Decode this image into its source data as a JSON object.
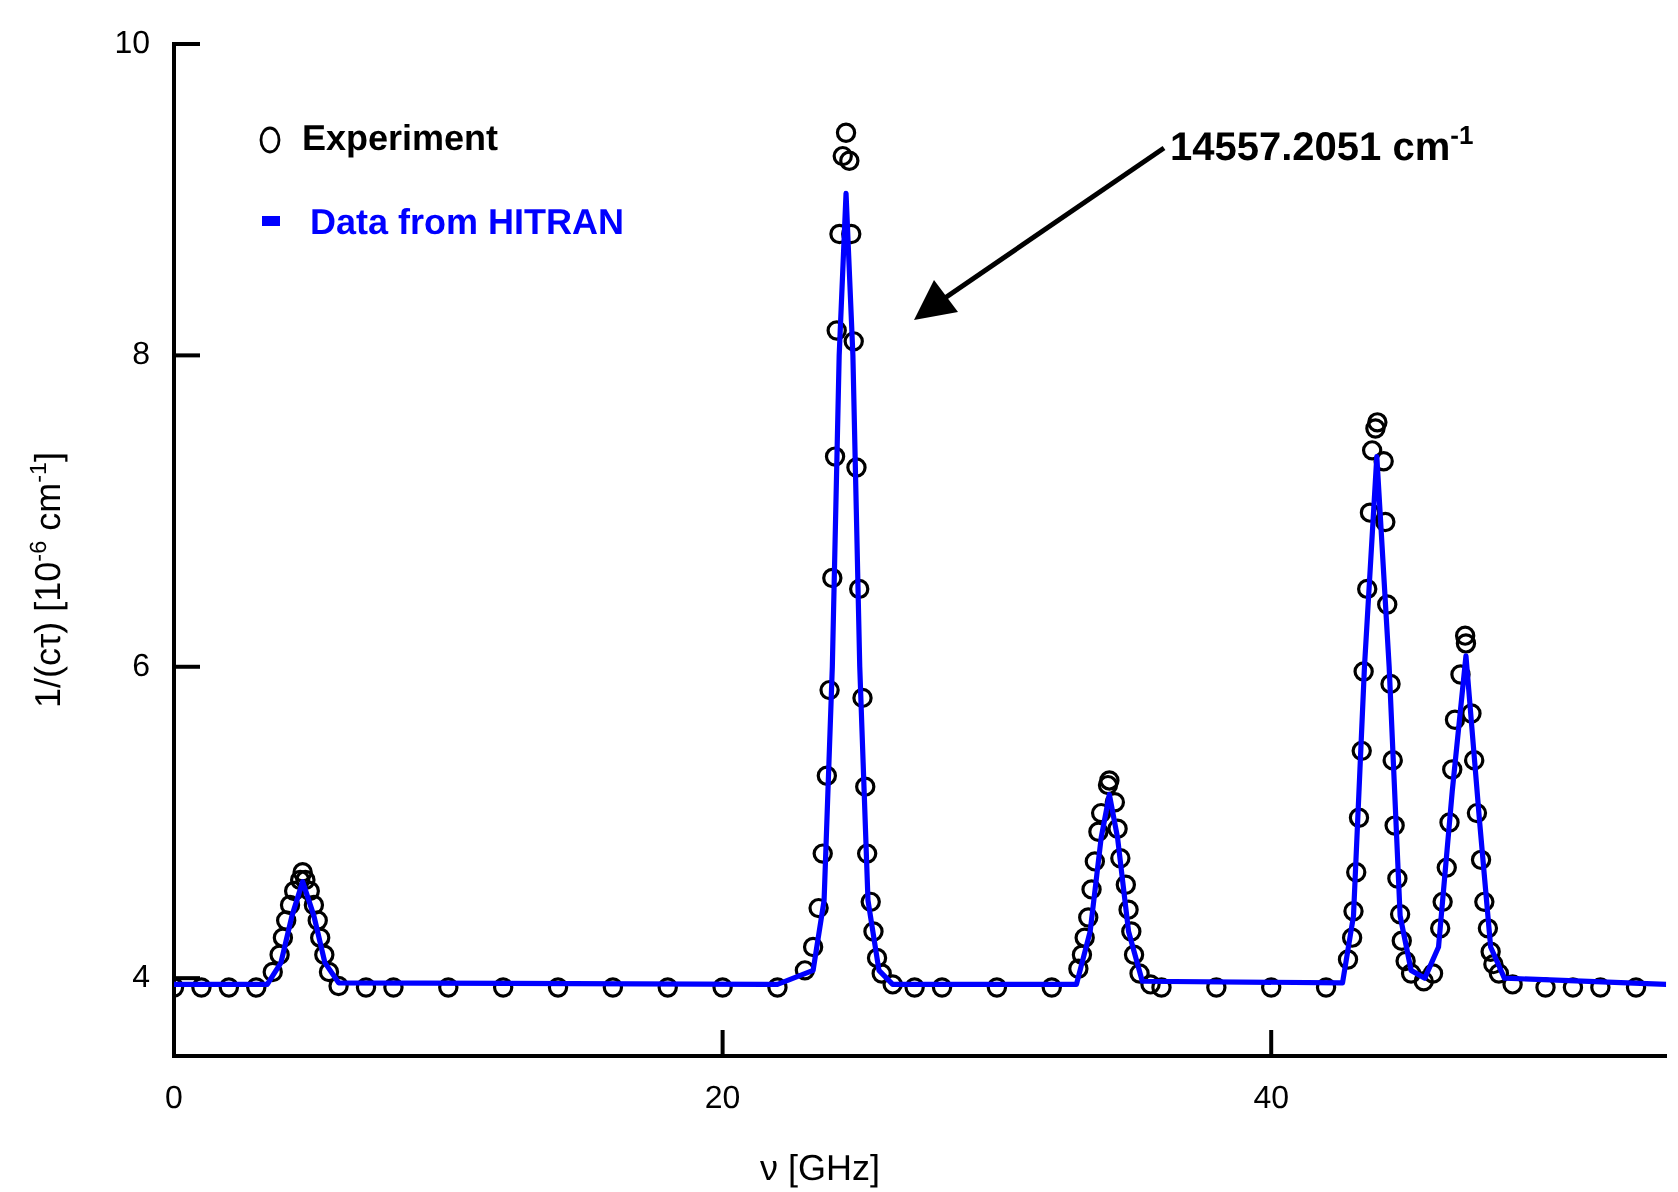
{
  "chart_data": {
    "type": "scatter",
    "xlabel": "ν [GHz]",
    "ylabel": "1/(cτ) [10$^{-6}$ cm$^{-1}$]",
    "annotations": [
      "14557.2051 cm$^{-1}$"
    ],
    "xlim": [
      0,
      54.4
    ],
    "xticks": [
      0,
      20,
      40
    ],
    "ylim": [
      3.5,
      10
    ],
    "yticks": [
      4,
      6,
      8,
      10
    ],
    "grid": false,
    "legend": "top left",
    "series": [
      {
        "name": "Experiment",
        "type": "scatter",
        "marker": "circle",
        "color": "#000000",
        "x": [
          0,
          1,
          2,
          3,
          3.6,
          3.85,
          3.97,
          4.09,
          4.23,
          4.38,
          4.6,
          4.69,
          4.79,
          4.95,
          5.1,
          5.24,
          5.33,
          5.48,
          5.65,
          6,
          7,
          8,
          10,
          12,
          14,
          16,
          18,
          20,
          22,
          23,
          23.3,
          23.5,
          23.65,
          23.8,
          23.9,
          24.0,
          24.1,
          24.16,
          24.26,
          24.38,
          24.5,
          24.62,
          24.69,
          24.78,
          24.88,
          24.98,
          25.1,
          25.2,
          25.27,
          25.4,
          25.5,
          25.63,
          25.8,
          26.2,
          27,
          28,
          30,
          32,
          32.97,
          33.1,
          33.2,
          33.33,
          33.45,
          33.57,
          33.7,
          33.8,
          34.05,
          34.1,
          34.3,
          34.4,
          34.5,
          34.7,
          34.8,
          34.9,
          35.0,
          35.2,
          35.6,
          36,
          38,
          40,
          42,
          42.8,
          42.95,
          43.0,
          43.1,
          43.2,
          43.3,
          43.37,
          43.5,
          43.6,
          43.68,
          43.8,
          43.87,
          44.1,
          44.16,
          44.23,
          44.35,
          44.43,
          44.5,
          44.6,
          44.7,
          44.76,
          44.9,
          45.1,
          45.56,
          45.9,
          46.16,
          46.25,
          46.4,
          46.5,
          46.6,
          46.7,
          46.9,
          47.07,
          47.1,
          47.3,
          47.4,
          47.5,
          47.65,
          47.77,
          47.9,
          48.0,
          48.1,
          48.3,
          48.8,
          50,
          51,
          52,
          53.3
        ],
        "values": [
          3.94,
          3.94,
          3.94,
          3.94,
          4.04,
          4.15,
          4.26,
          4.37,
          4.47,
          4.56,
          4.63,
          4.68,
          4.63,
          4.56,
          4.47,
          4.37,
          4.26,
          4.15,
          4.04,
          3.95,
          3.94,
          3.94,
          3.94,
          3.94,
          3.94,
          3.94,
          3.94,
          3.94,
          3.94,
          4.05,
          4.2,
          4.45,
          4.8,
          5.3,
          5.85,
          6.57,
          7.35,
          8.16,
          8.78,
          9.28,
          9.43,
          9.25,
          8.78,
          8.09,
          7.28,
          6.5,
          5.8,
          5.23,
          4.8,
          4.49,
          4.3,
          4.13,
          4.03,
          3.96,
          3.94,
          3.94,
          3.94,
          3.94,
          4.06,
          4.15,
          4.26,
          4.39,
          4.57,
          4.75,
          4.94,
          5.06,
          5.24,
          5.27,
          5.13,
          4.96,
          4.77,
          4.6,
          4.44,
          4.3,
          4.15,
          4.03,
          3.96,
          3.94,
          3.94,
          3.94,
          3.94,
          4.12,
          4.26,
          4.43,
          4.68,
          5.03,
          5.46,
          5.97,
          6.5,
          6.99,
          7.39,
          7.53,
          7.57,
          7.32,
          6.93,
          6.4,
          5.89,
          5.4,
          4.98,
          4.64,
          4.41,
          4.24,
          4.11,
          4.03,
          3.98,
          4.03,
          4.32,
          4.49,
          4.71,
          5.0,
          5.34,
          5.66,
          5.95,
          6.2,
          6.15,
          5.7,
          5.4,
          5.06,
          4.76,
          4.49,
          4.32,
          4.17,
          4.09,
          4.03,
          3.96,
          3.94,
          3.94,
          3.94,
          3.94
        ]
      },
      {
        "name": "Data from HITRAN",
        "type": "line",
        "marker": "none",
        "color": "#0000ff",
        "x": [
          0,
          3.4,
          3.9,
          4.3,
          4.69,
          5.1,
          5.5,
          6,
          22,
          23.3,
          23.7,
          24.0,
          24.25,
          24.5,
          24.75,
          25.0,
          25.3,
          25.7,
          26.2,
          32.9,
          33.4,
          33.8,
          34.1,
          34.4,
          34.8,
          35.3,
          42.6,
          43.0,
          43.4,
          43.85,
          44.3,
          44.7,
          45.1,
          45.6,
          46.1,
          46.6,
          47.1,
          47.6,
          48.0,
          48.5,
          54.4
        ],
        "values": [
          3.96,
          3.96,
          4.1,
          4.4,
          4.62,
          4.4,
          4.1,
          3.97,
          3.96,
          4.05,
          4.5,
          6.0,
          8.0,
          9.04,
          8.0,
          6.0,
          4.5,
          4.05,
          3.96,
          3.96,
          4.3,
          4.9,
          5.18,
          4.9,
          4.3,
          3.98,
          3.97,
          4.4,
          6.0,
          7.35,
          6.0,
          4.4,
          4.05,
          4.0,
          4.2,
          5.2,
          6.07,
          5.0,
          4.2,
          4.0,
          3.96
        ]
      }
    ]
  }
}
